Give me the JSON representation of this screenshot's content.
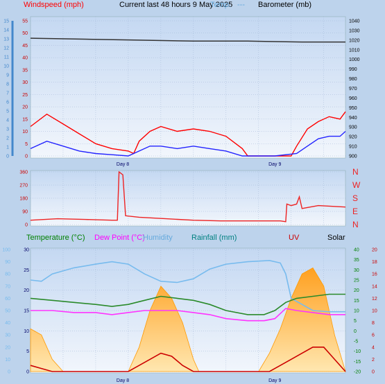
{
  "header": {
    "left_label": "Windspeed (mph)",
    "title": "Current last 48 hours 9 May 2025",
    "temp_label": "Temp.",
    "temp_dashes": "---",
    "right_label": "Barometer (mb)"
  },
  "panels": {
    "bottom_labels": {
      "temperature": "Temperature (°C)",
      "dew_point": "Dew Point (°C)",
      "humidity": "Humidity",
      "rainfall": "Rainfall (mm)",
      "uv": "UV",
      "solar": "Solar"
    }
  },
  "colors": {
    "windspeed": "#ff0000",
    "wind_avg": "#2222ff",
    "barometer": "#333333",
    "direction": "#ee2222",
    "temperature": "#2a8a2a",
    "dew_point": "#ff33ff",
    "humidity": "#77bbee",
    "rainfall": "#008080",
    "uv": "#cc0000",
    "solar": "#ff9900",
    "beaufort": "#4488cc"
  },
  "chart_data": [
    {
      "type": "line",
      "name": "wind-barometer",
      "x_ticks": [
        "Day 8",
        "Day 9"
      ],
      "left_axis": {
        "label": "Windspeed (mph)",
        "range": [
          0,
          55
        ],
        "ticks": [
          0,
          5,
          10,
          15,
          20,
          25,
          30,
          35,
          40,
          45,
          50,
          55
        ]
      },
      "beaufort_axis": {
        "range": [
          0,
          15
        ],
        "ticks": [
          0,
          1,
          2,
          3,
          4,
          5,
          6,
          7,
          8,
          9,
          10,
          11,
          12,
          13,
          14,
          15
        ]
      },
      "right_axis": {
        "label": "Barometer (mb)",
        "range": [
          900,
          1040
        ],
        "ticks": [
          900,
          910,
          920,
          930,
          940,
          950,
          960,
          970,
          980,
          990,
          1000,
          1010,
          1020,
          1030,
          1040
        ]
      },
      "series": [
        {
          "label": "gust",
          "points": [
            [
              0,
              12
            ],
            [
              3,
              17
            ],
            [
              6,
              13
            ],
            [
              9,
              9
            ],
            [
              12,
              5
            ],
            [
              15,
              3
            ],
            [
              18,
              2
            ],
            [
              19,
              1
            ],
            [
              20,
              6
            ],
            [
              22,
              10
            ],
            [
              24,
              12
            ],
            [
              27,
              10
            ],
            [
              30,
              11
            ],
            [
              33,
              10
            ],
            [
              36,
              8
            ],
            [
              39,
              3
            ],
            [
              40,
              0
            ],
            [
              42,
              0
            ],
            [
              45,
              0
            ],
            [
              48,
              0
            ],
            [
              49,
              4
            ],
            [
              51,
              11
            ],
            [
              53,
              14
            ],
            [
              55,
              16
            ],
            [
              57,
              15
            ],
            [
              58,
              18
            ]
          ]
        },
        {
          "label": "average",
          "points": [
            [
              0,
              3
            ],
            [
              3,
              6
            ],
            [
              6,
              4
            ],
            [
              9,
              2
            ],
            [
              12,
              1
            ],
            [
              15,
              0.5
            ],
            [
              18,
              0
            ],
            [
              20,
              2
            ],
            [
              22,
              4
            ],
            [
              24,
              4
            ],
            [
              27,
              3
            ],
            [
              30,
              4
            ],
            [
              33,
              3
            ],
            [
              36,
              2
            ],
            [
              39,
              0
            ],
            [
              40,
              0
            ],
            [
              45,
              0
            ],
            [
              49,
              1
            ],
            [
              51,
              4
            ],
            [
              53,
              7
            ],
            [
              55,
              8
            ],
            [
              57,
              8
            ],
            [
              58,
              10
            ]
          ]
        },
        {
          "label": "barometer",
          "points": [
            [
              0,
              1022
            ],
            [
              10,
              1021
            ],
            [
              20,
              1020
            ],
            [
              30,
              1019
            ],
            [
              40,
              1019
            ],
            [
              50,
              1018
            ],
            [
              58,
              1018
            ]
          ]
        }
      ]
    },
    {
      "type": "line",
      "name": "wind-direction",
      "left_axis": {
        "range": [
          0,
          360
        ],
        "ticks": [
          0,
          90,
          180,
          270,
          360
        ]
      },
      "right_labels": [
        "N",
        "W",
        "S",
        "E",
        "N"
      ],
      "series": [
        {
          "label": "direction",
          "points": [
            [
              0,
              30
            ],
            [
              5,
              40
            ],
            [
              10,
              35
            ],
            [
              15,
              30
            ],
            [
              16,
              30
            ],
            [
              16.3,
              360
            ],
            [
              17,
              340
            ],
            [
              17.5,
              60
            ],
            [
              20,
              50
            ],
            [
              25,
              40
            ],
            [
              30,
              30
            ],
            [
              35,
              25
            ],
            [
              39,
              25
            ],
            [
              46,
              25
            ],
            [
              47,
              20
            ],
            [
              47.2,
              140
            ],
            [
              48,
              130
            ],
            [
              49,
              140
            ],
            [
              49.5,
              190
            ],
            [
              50,
              110
            ],
            [
              53,
              130
            ],
            [
              58,
              120
            ]
          ]
        }
      ]
    },
    {
      "type": "line",
      "name": "temperature-humidity-rain-uv-solar",
      "x_ticks": [
        "Day 8",
        "Day 9"
      ],
      "humidity_axis": {
        "range": [
          0,
          100
        ],
        "ticks": [
          0,
          10,
          20,
          30,
          40,
          50,
          60,
          70,
          80,
          90,
          100
        ]
      },
      "rain_axis": {
        "range": [
          0,
          30
        ],
        "ticks": [
          0,
          5,
          10,
          15,
          20,
          25,
          30
        ]
      },
      "temp_axis": {
        "range": [
          -20,
          40
        ],
        "ticks": [
          -20,
          -15,
          -10,
          -5,
          0,
          5,
          10,
          15,
          20,
          25,
          30,
          35,
          40
        ]
      },
      "uv_axis": {
        "range": [
          0,
          20
        ],
        "ticks": [
          0,
          2,
          4,
          6,
          8,
          10,
          12,
          14,
          16,
          18,
          20
        ]
      },
      "series": [
        {
          "label": "humidity",
          "points": [
            [
              0,
              75
            ],
            [
              2,
              74
            ],
            [
              4,
              80
            ],
            [
              8,
              85
            ],
            [
              12,
              88
            ],
            [
              15,
              90
            ],
            [
              18,
              88
            ],
            [
              21,
              80
            ],
            [
              24,
              74
            ],
            [
              27,
              73
            ],
            [
              30,
              76
            ],
            [
              33,
              84
            ],
            [
              36,
              88
            ],
            [
              40,
              90
            ],
            [
              44,
              91
            ],
            [
              46,
              89
            ],
            [
              47,
              80
            ],
            [
              48,
              60
            ],
            [
              50,
              55
            ],
            [
              52,
              50
            ],
            [
              55,
              49
            ],
            [
              58,
              49
            ]
          ]
        },
        {
          "label": "temperature",
          "points": [
            [
              0,
              16
            ],
            [
              4,
              15
            ],
            [
              8,
              14
            ],
            [
              12,
              13
            ],
            [
              15,
              12
            ],
            [
              18,
              13
            ],
            [
              21,
              15
            ],
            [
              24,
              17
            ],
            [
              27,
              16
            ],
            [
              30,
              15
            ],
            [
              33,
              13
            ],
            [
              36,
              10
            ],
            [
              40,
              8
            ],
            [
              43,
              8
            ],
            [
              45,
              10
            ],
            [
              47,
              14
            ],
            [
              49,
              16
            ],
            [
              52,
              17
            ],
            [
              55,
              18
            ],
            [
              58,
              18
            ]
          ]
        },
        {
          "label": "dew_point",
          "points": [
            [
              0,
              10
            ],
            [
              4,
              10
            ],
            [
              8,
              9
            ],
            [
              12,
              9
            ],
            [
              15,
              8
            ],
            [
              18,
              9
            ],
            [
              21,
              10
            ],
            [
              24,
              10
            ],
            [
              27,
              10
            ],
            [
              30,
              9
            ],
            [
              33,
              8
            ],
            [
              36,
              6
            ],
            [
              40,
              5
            ],
            [
              43,
              5
            ],
            [
              45,
              6
            ],
            [
              47,
              11
            ],
            [
              49,
              10
            ],
            [
              52,
              9
            ],
            [
              55,
              8
            ],
            [
              58,
              8
            ]
          ]
        },
        {
          "label": "solar",
          "points": [
            [
              0,
              350
            ],
            [
              2,
              300
            ],
            [
              4,
              100
            ],
            [
              6,
              0
            ],
            [
              12,
              0
            ],
            [
              18,
              0
            ],
            [
              19,
              100
            ],
            [
              20,
              200
            ],
            [
              22,
              500
            ],
            [
              24,
              700
            ],
            [
              26,
              600
            ],
            [
              28,
              400
            ],
            [
              30,
              100
            ],
            [
              31,
              0
            ],
            [
              42,
              0
            ],
            [
              44,
              150
            ],
            [
              46,
              350
            ],
            [
              48,
              600
            ],
            [
              50,
              800
            ],
            [
              52,
              850
            ],
            [
              54,
              700
            ],
            [
              56,
              300
            ],
            [
              58,
              0
            ]
          ]
        },
        {
          "label": "uv",
          "points": [
            [
              0,
              1
            ],
            [
              2,
              0.5
            ],
            [
              4,
              0
            ],
            [
              18,
              0
            ],
            [
              20,
              1
            ],
            [
              22,
              2
            ],
            [
              24,
              3
            ],
            [
              26,
              2.5
            ],
            [
              28,
              1
            ],
            [
              30,
              0
            ],
            [
              44,
              0
            ],
            [
              46,
              1
            ],
            [
              48,
              2
            ],
            [
              50,
              3
            ],
            [
              52,
              4
            ],
            [
              54,
              4
            ],
            [
              56,
              2
            ],
            [
              58,
              0
            ]
          ]
        }
      ]
    }
  ]
}
